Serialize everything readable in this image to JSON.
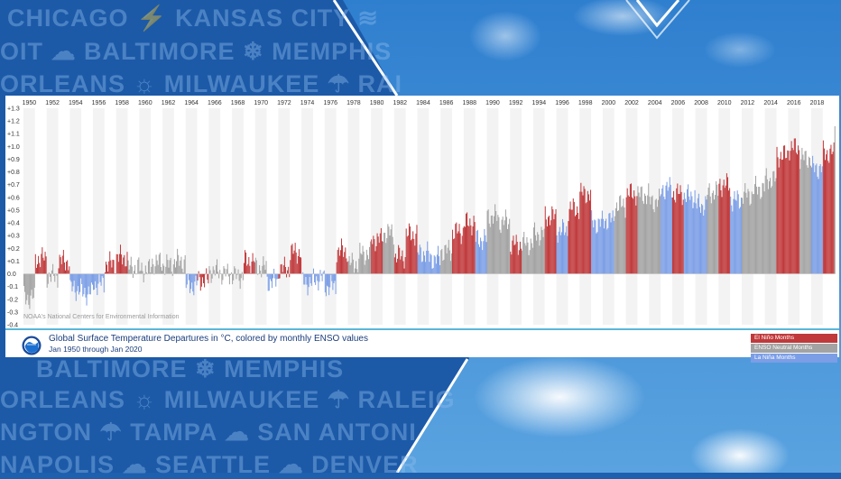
{
  "background": {
    "cities": [
      "CHICAGO",
      "KANSAS CITY",
      "OIT",
      "BALTIMORE",
      "MEMPHIS",
      "ORLEANS",
      "MILWAUKEE",
      "RAI",
      "BALTIMORE",
      "MEMPHIS",
      "ORLEANS",
      "MILWAUKEE",
      "RALEIG",
      "NGTON",
      "TAMPA",
      "SAN ANTONI",
      "NAPOLIS",
      "SEATTLE",
      "DENVER"
    ],
    "colors": {
      "base": "#1e5fae",
      "sky": "#3d8fd8",
      "accent": "#ffffff"
    }
  },
  "caption": {
    "title": "Global Surface Temperature Departures in °C, colored by monthly ENSO values",
    "subtitle": "Jan 1950 through Jan 2020",
    "source": "NOAA's National Centers for Environmental Information",
    "logo_icon": "noaa-logo-icon"
  },
  "legend": [
    {
      "label": "El Niño Months",
      "color": "#c0393b"
    },
    {
      "label": "ENSO Neutral Months",
      "color": "#a3a3a3"
    },
    {
      "label": "La Niña Months",
      "color": "#7b9ee6"
    }
  ],
  "chart_data": {
    "type": "bar",
    "title": "Global Surface Temperature Departures in °C, colored by monthly ENSO values",
    "subtitle": "Jan 1950 through Jan 2020",
    "xlabel": "",
    "ylabel": "",
    "x_tick_labels": [
      "1950",
      "1952",
      "1954",
      "1956",
      "1958",
      "1960",
      "1962",
      "1964",
      "1966",
      "1968",
      "1970",
      "1972",
      "1974",
      "1976",
      "1978",
      "1980",
      "1982",
      "1984",
      "1986",
      "1988",
      "1990",
      "1992",
      "1994",
      "1996",
      "1998",
      "2000",
      "2002",
      "2004",
      "2006",
      "2008",
      "2010",
      "2012",
      "2014",
      "2016",
      "2018"
    ],
    "y_tick_labels": [
      "+1.3",
      "+1.2",
      "+1.1",
      "+1.0",
      "+0.9",
      "+0.8",
      "+0.7",
      "+0.6",
      "+0.5",
      "+0.4",
      "+0.3",
      "+0.2",
      "+0.1",
      "0.0",
      "-0.1",
      "-0.2",
      "-0.3",
      "-0.4"
    ],
    "ylim": [
      -0.4,
      1.3
    ],
    "xlim": [
      1950,
      2020.1
    ],
    "grid": "alternating year bands",
    "legend_position": "bottom-right",
    "series": [
      {
        "name": "El Niño Months",
        "color": "#c0393b"
      },
      {
        "name": "ENSO Neutral Months",
        "color": "#a3a3a3"
      },
      {
        "name": "La Niña Months",
        "color": "#7b9ee6"
      }
    ],
    "annual_values": [
      {
        "year": 1950,
        "value": -0.19,
        "phase": "neutral"
      },
      {
        "year": 1951,
        "value": 0.12,
        "phase": "el-nino"
      },
      {
        "year": 1952,
        "value": -0.02,
        "phase": "neutral"
      },
      {
        "year": 1953,
        "value": 0.1,
        "phase": "el-nino"
      },
      {
        "year": 1954,
        "value": -0.12,
        "phase": "la-nina"
      },
      {
        "year": 1955,
        "value": -0.15,
        "phase": "la-nina"
      },
      {
        "year": 1956,
        "value": -0.08,
        "phase": "la-nina"
      },
      {
        "year": 1957,
        "value": 0.08,
        "phase": "el-nino"
      },
      {
        "year": 1958,
        "value": 0.13,
        "phase": "el-nino"
      },
      {
        "year": 1959,
        "value": 0.05,
        "phase": "neutral"
      },
      {
        "year": 1960,
        "value": 0.03,
        "phase": "neutral"
      },
      {
        "year": 1961,
        "value": 0.09,
        "phase": "neutral"
      },
      {
        "year": 1962,
        "value": 0.07,
        "phase": "neutral"
      },
      {
        "year": 1963,
        "value": 0.1,
        "phase": "neutral"
      },
      {
        "year": 1964,
        "value": -0.09,
        "phase": "la-nina"
      },
      {
        "year": 1965,
        "value": -0.05,
        "phase": "el-nino"
      },
      {
        "year": 1966,
        "value": 0.02,
        "phase": "neutral"
      },
      {
        "year": 1967,
        "value": 0.0,
        "phase": "neutral"
      },
      {
        "year": 1968,
        "value": -0.02,
        "phase": "neutral"
      },
      {
        "year": 1969,
        "value": 0.1,
        "phase": "el-nino"
      },
      {
        "year": 1970,
        "value": 0.05,
        "phase": "neutral"
      },
      {
        "year": 1971,
        "value": -0.06,
        "phase": "la-nina"
      },
      {
        "year": 1972,
        "value": 0.04,
        "phase": "el-nino"
      },
      {
        "year": 1973,
        "value": 0.17,
        "phase": "el-nino"
      },
      {
        "year": 1974,
        "value": -0.07,
        "phase": "la-nina"
      },
      {
        "year": 1975,
        "value": -0.04,
        "phase": "la-nina"
      },
      {
        "year": 1976,
        "value": -0.1,
        "phase": "la-nina"
      },
      {
        "year": 1977,
        "value": 0.18,
        "phase": "el-nino"
      },
      {
        "year": 1978,
        "value": 0.08,
        "phase": "neutral"
      },
      {
        "year": 1979,
        "value": 0.16,
        "phase": "neutral"
      },
      {
        "year": 1980,
        "value": 0.27,
        "phase": "el-nino"
      },
      {
        "year": 1981,
        "value": 0.32,
        "phase": "neutral"
      },
      {
        "year": 1982,
        "value": 0.14,
        "phase": "el-nino"
      },
      {
        "year": 1983,
        "value": 0.31,
        "phase": "el-nino"
      },
      {
        "year": 1984,
        "value": 0.16,
        "phase": "la-nina"
      },
      {
        "year": 1985,
        "value": 0.12,
        "phase": "la-nina"
      },
      {
        "year": 1986,
        "value": 0.18,
        "phase": "neutral"
      },
      {
        "year": 1987,
        "value": 0.33,
        "phase": "el-nino"
      },
      {
        "year": 1988,
        "value": 0.4,
        "phase": "el-nino"
      },
      {
        "year": 1989,
        "value": 0.27,
        "phase": "la-nina"
      },
      {
        "year": 1990,
        "value": 0.45,
        "phase": "neutral"
      },
      {
        "year": 1991,
        "value": 0.41,
        "phase": "neutral"
      },
      {
        "year": 1992,
        "value": 0.23,
        "phase": "el-nino"
      },
      {
        "year": 1993,
        "value": 0.24,
        "phase": "neutral"
      },
      {
        "year": 1994,
        "value": 0.31,
        "phase": "neutral"
      },
      {
        "year": 1995,
        "value": 0.45,
        "phase": "el-nino"
      },
      {
        "year": 1996,
        "value": 0.34,
        "phase": "la-nina"
      },
      {
        "year": 1997,
        "value": 0.51,
        "phase": "el-nino"
      },
      {
        "year": 1998,
        "value": 0.63,
        "phase": "el-nino"
      },
      {
        "year": 1999,
        "value": 0.4,
        "phase": "la-nina"
      },
      {
        "year": 2000,
        "value": 0.42,
        "phase": "la-nina"
      },
      {
        "year": 2001,
        "value": 0.54,
        "phase": "neutral"
      },
      {
        "year": 2002,
        "value": 0.63,
        "phase": "el-nino"
      },
      {
        "year": 2003,
        "value": 0.62,
        "phase": "neutral"
      },
      {
        "year": 2004,
        "value": 0.57,
        "phase": "neutral"
      },
      {
        "year": 2005,
        "value": 0.67,
        "phase": "la-nina"
      },
      {
        "year": 2006,
        "value": 0.63,
        "phase": "el-nino"
      },
      {
        "year": 2007,
        "value": 0.61,
        "phase": "la-nina"
      },
      {
        "year": 2008,
        "value": 0.54,
        "phase": "la-nina"
      },
      {
        "year": 2009,
        "value": 0.64,
        "phase": "neutral"
      },
      {
        "year": 2010,
        "value": 0.7,
        "phase": "el-nino"
      },
      {
        "year": 2011,
        "value": 0.58,
        "phase": "la-nina"
      },
      {
        "year": 2012,
        "value": 0.62,
        "phase": "neutral"
      },
      {
        "year": 2013,
        "value": 0.67,
        "phase": "neutral"
      },
      {
        "year": 2014,
        "value": 0.74,
        "phase": "neutral"
      },
      {
        "year": 2015,
        "value": 0.93,
        "phase": "el-nino"
      },
      {
        "year": 2016,
        "value": 0.99,
        "phase": "el-nino"
      },
      {
        "year": 2017,
        "value": 0.91,
        "phase": "neutral"
      },
      {
        "year": 2018,
        "value": 0.83,
        "phase": "la-nina"
      },
      {
        "year": 2019,
        "value": 0.95,
        "phase": "el-nino"
      },
      {
        "year": 2020,
        "value": 1.14,
        "phase": "neutral"
      }
    ]
  }
}
